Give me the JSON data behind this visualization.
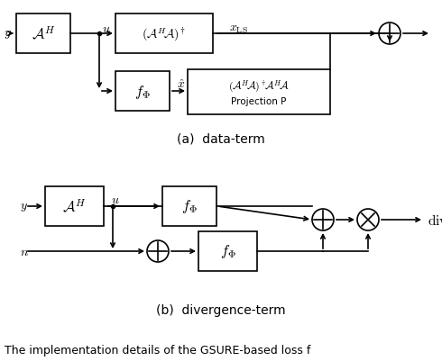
{
  "fig_width": 4.9,
  "fig_height": 4.02,
  "dpi": 100,
  "caption_a": "(a)  data-term",
  "caption_b": "(b)  divergence-term",
  "bottom_text": "The implementation details of the GSURE-based loss f",
  "background_color": "#ffffff"
}
